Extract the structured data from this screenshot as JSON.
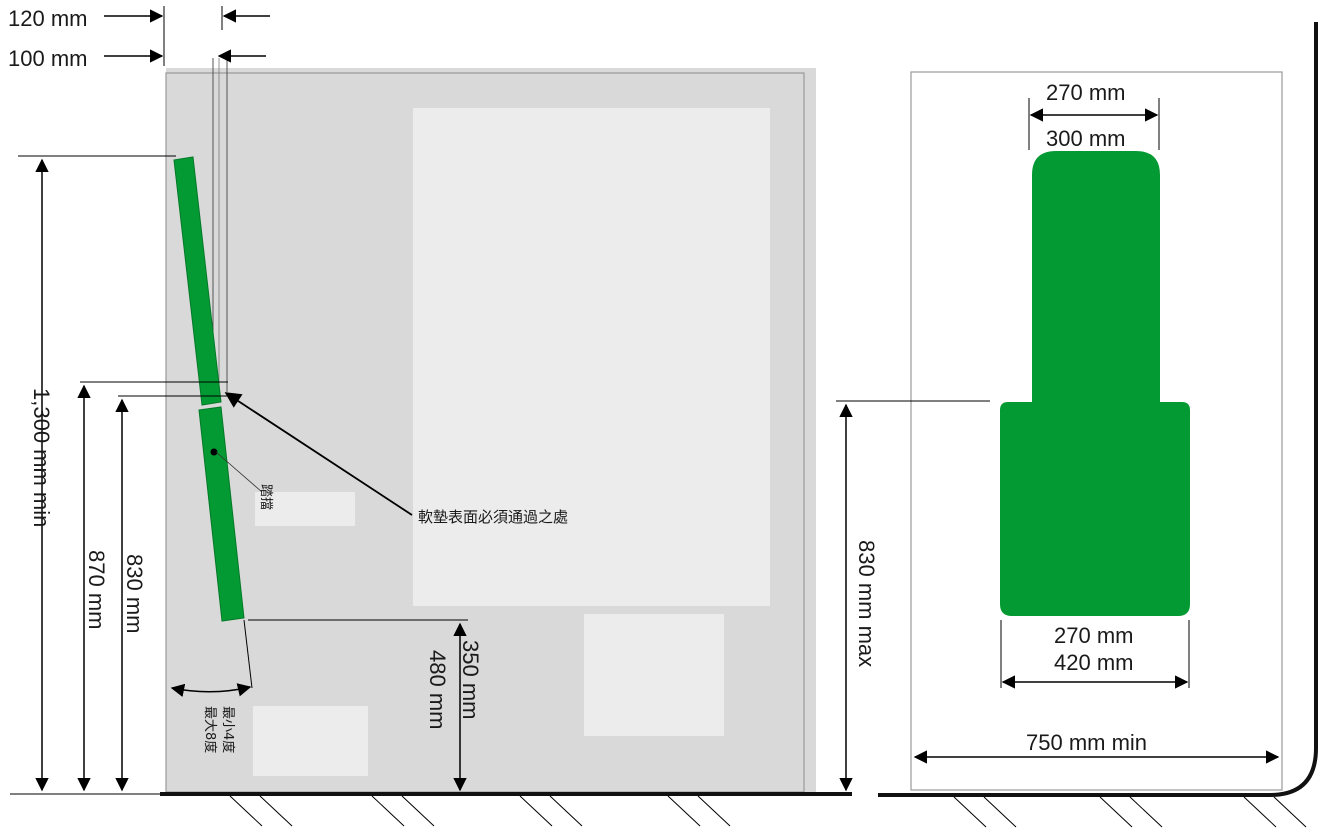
{
  "colors": {
    "pad": "#049a33",
    "panel": "#d9d9d9",
    "panel_light": "#ececec",
    "line": "#000000",
    "ground": "#111111"
  },
  "labels": {
    "dim_120": "120 mm",
    "dim_100": "100 mm",
    "dim_1300": "1,300 mm min",
    "dim_870": "870 mm",
    "dim_830": "830 mm",
    "dim_350": "350 mm",
    "dim_480": "480 mm",
    "hinge_label": "踏擋",
    "surface_note": "軟墊表面必須通過之處",
    "angle_min": "最小4度",
    "angle_max": "最大8度",
    "top_270": "270 mm",
    "top_300": "300 mm",
    "bottom_270": "270 mm",
    "bottom_420": "420 mm",
    "height_830_max": "830 mm max",
    "width_750": "750 mm min"
  }
}
